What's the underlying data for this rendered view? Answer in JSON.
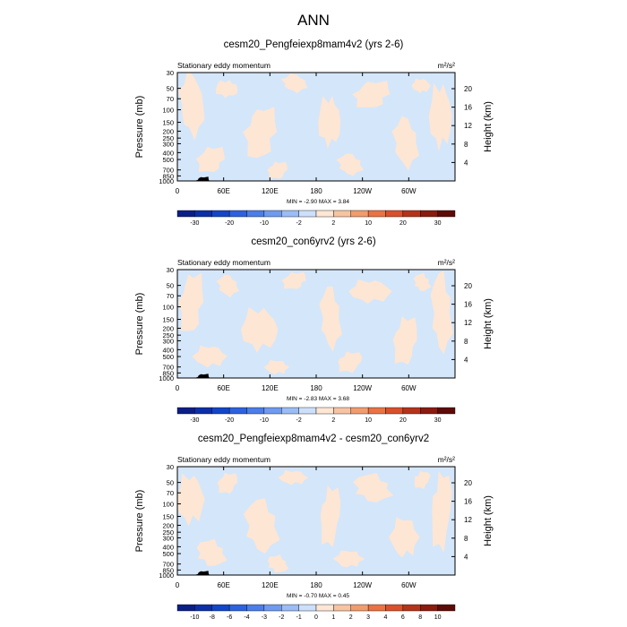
{
  "figure_title": "ANN",
  "chart_data": [
    {
      "type": "heatmap",
      "title": "cesm20_Pengfeiexp8mam4v2 (yrs 2-6)",
      "subtitle": "Stationary eddy momentum",
      "units": "m²/s²",
      "ylabel": "Pressure (mb)",
      "ylabel_right": "Height (km)",
      "x_ticks": [
        "0",
        "60E",
        "120E",
        "180",
        "120W",
        "60W"
      ],
      "y_ticks": [
        "30",
        "50",
        "70",
        "100",
        "150",
        "200",
        "250",
        "300",
        "400",
        "500",
        "700",
        "850",
        "1000"
      ],
      "y_ticks_right": [
        "20",
        "16",
        "12",
        "8",
        "4"
      ],
      "stats_text": "MIN = -2.90  MAX =  3.84",
      "min": -2.9,
      "max": 3.84,
      "colorbar_labels": [
        "-30",
        "-20",
        "-10",
        "-2",
        "2",
        "10",
        "20",
        "30"
      ],
      "colorbar_levels": [
        -30,
        -25,
        -20,
        -15,
        -10,
        -5,
        -2,
        0,
        2,
        5,
        10,
        15,
        20,
        25,
        30
      ],
      "colorbar_colors": [
        "#0a1f86",
        "#0c2fa8",
        "#1246c8",
        "#2d62de",
        "#4b7ee8",
        "#6f9af0",
        "#9bbcf5",
        "#cde0fb",
        "#fde6d4",
        "#f7c4a2",
        "#f29c6e",
        "#ea7344",
        "#d9502a",
        "#b4341a",
        "#8a1b0e",
        "#5e0a06"
      ],
      "field_colors": {
        "positive": "#fde6d4",
        "negative": "#d4e6fa",
        "terrain": "#000000"
      }
    },
    {
      "type": "heatmap",
      "title": "cesm20_con6yrv2 (yrs 2-6)",
      "subtitle": "Stationary eddy momentum",
      "units": "m²/s²",
      "ylabel": "Pressure (mb)",
      "ylabel_right": "Height (km)",
      "x_ticks": [
        "0",
        "60E",
        "120E",
        "180",
        "120W",
        "60W"
      ],
      "y_ticks": [
        "30",
        "50",
        "70",
        "100",
        "150",
        "200",
        "250",
        "300",
        "400",
        "500",
        "700",
        "850",
        "1000"
      ],
      "y_ticks_right": [
        "20",
        "16",
        "12",
        "8",
        "4"
      ],
      "stats_text": "MIN = -2.83  MAX =  3.68",
      "min": -2.83,
      "max": 3.68,
      "colorbar_labels": [
        "-30",
        "-20",
        "-10",
        "-2",
        "2",
        "10",
        "20",
        "30"
      ],
      "colorbar_levels": [
        -30,
        -25,
        -20,
        -15,
        -10,
        -5,
        -2,
        0,
        2,
        5,
        10,
        15,
        20,
        25,
        30
      ],
      "colorbar_colors": [
        "#0a1f86",
        "#0c2fa8",
        "#1246c8",
        "#2d62de",
        "#4b7ee8",
        "#6f9af0",
        "#9bbcf5",
        "#cde0fb",
        "#fde6d4",
        "#f7c4a2",
        "#f29c6e",
        "#ea7344",
        "#d9502a",
        "#b4341a",
        "#8a1b0e",
        "#5e0a06"
      ],
      "field_colors": {
        "positive": "#fde6d4",
        "negative": "#d4e6fa",
        "terrain": "#000000"
      }
    },
    {
      "type": "heatmap",
      "title": "cesm20_Pengfeiexp8mam4v2 - cesm20_con6yrv2",
      "subtitle": "Stationary eddy momentum",
      "units": "m²/s²",
      "ylabel": "Pressure (mb)",
      "ylabel_right": "Height (km)",
      "x_ticks": [
        "0",
        "60E",
        "120E",
        "180",
        "120W",
        "60W"
      ],
      "y_ticks": [
        "30",
        "50",
        "70",
        "100",
        "150",
        "200",
        "250",
        "300",
        "400",
        "500",
        "700",
        "850",
        "1000"
      ],
      "y_ticks_right": [
        "20",
        "16",
        "12",
        "8",
        "4"
      ],
      "stats_text": "MIN = -0.70  MAX =  0.45",
      "min": -0.7,
      "max": 0.45,
      "colorbar_labels": [
        "-10",
        "-8",
        "-6",
        "-4",
        "-3",
        "-2",
        "-1",
        "0",
        "1",
        "2",
        "3",
        "4",
        "6",
        "8",
        "10"
      ],
      "colorbar_levels": [
        -10,
        -8,
        -6,
        -4,
        -3,
        -2,
        -1,
        0,
        1,
        2,
        3,
        4,
        6,
        8,
        10
      ],
      "colorbar_colors": [
        "#0a1f86",
        "#0c2fa8",
        "#1246c8",
        "#2d62de",
        "#4b7ee8",
        "#6f9af0",
        "#9bbcf5",
        "#cde0fb",
        "#fde6d4",
        "#f7c4a2",
        "#f29c6e",
        "#ea7344",
        "#d9502a",
        "#b4341a",
        "#8a1b0e",
        "#5e0a06"
      ],
      "field_colors": {
        "positive": "#fde6d4",
        "negative": "#d4e6fa",
        "terrain": "#000000"
      }
    }
  ]
}
